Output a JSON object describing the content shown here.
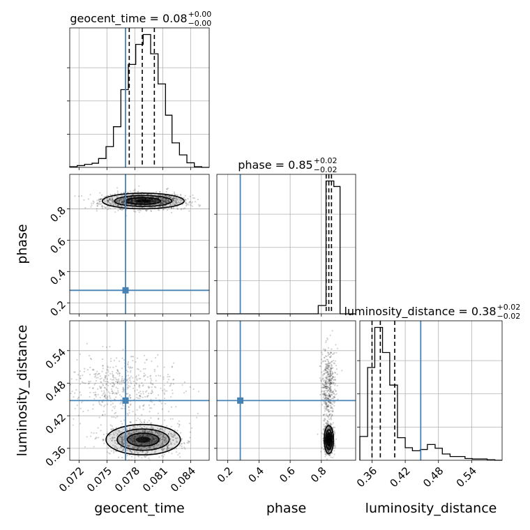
{
  "chart_data": {
    "type": "corner",
    "parameters": [
      "geocent_time",
      "phase",
      "luminosity_distance"
    ],
    "truth_color": "#4682b4",
    "truths": {
      "geocent_time": 0.077,
      "phase": 0.28,
      "luminosity_distance": 0.448
    },
    "titles": [
      {
        "param": "geocent_time",
        "text": "geocent_time = 0.08",
        "sup": "+0.00",
        "sub": "−0.00"
      },
      {
        "param": "phase",
        "text": "phase = 0.85",
        "sup": "+0.02",
        "sub": "−0.02"
      },
      {
        "param": "luminosity_distance",
        "text": "luminosity_distance = 0.38",
        "sup": "+0.02",
        "sub": "−0.02"
      }
    ],
    "axes": {
      "geocent_time": {
        "range": [
          0.071,
          0.086
        ],
        "ticks": [
          "0.072",
          "0.075",
          "0.078",
          "0.081",
          "0.084"
        ],
        "tick_values": [
          0.072,
          0.075,
          0.078,
          0.081,
          0.084
        ]
      },
      "phase": {
        "range": [
          0.13,
          1.02
        ],
        "ticks": [
          "0.2",
          "0.4",
          "0.6",
          "0.8"
        ],
        "tick_values": [
          0.2,
          0.4,
          0.6,
          0.8
        ]
      },
      "luminosity_distance": {
        "range": [
          0.338,
          0.595
        ],
        "ticks": [
          "0.36",
          "0.42",
          "0.48",
          "0.54"
        ],
        "tick_values": [
          0.36,
          0.42,
          0.48,
          0.54
        ]
      }
    },
    "histograms": {
      "geocent_time": {
        "bin_edges": [
          0.071,
          0.0718,
          0.0726,
          0.0734,
          0.0741,
          0.0749,
          0.0757,
          0.0765,
          0.0773,
          0.0781,
          0.0789,
          0.0797,
          0.0805,
          0.0813,
          0.082,
          0.0828,
          0.0836,
          0.0844,
          0.0852,
          0.086
        ],
        "counts": [
          0.5,
          1.3,
          2.2,
          3.0,
          6.4,
          15.0,
          29.4,
          56.2,
          74.4,
          88.9,
          96.0,
          82.1,
          60.3,
          37.7,
          17.7,
          9.0,
          3.3,
          0.5,
          0.0
        ],
        "quantiles": [
          0.0774,
          0.0788,
          0.0801
        ]
      },
      "phase": {
        "bin_edges": [
          0.13,
          0.18,
          0.22,
          0.27,
          0.32,
          0.36,
          0.41,
          0.46,
          0.5,
          0.55,
          0.6,
          0.64,
          0.69,
          0.74,
          0.78,
          0.83,
          0.88,
          0.92,
          0.97,
          1.02
        ],
        "counts": [
          0,
          0,
          0,
          0,
          0,
          0,
          0,
          0,
          0,
          0,
          0,
          0,
          0,
          0,
          3,
          48,
          46,
          0,
          0
        ],
        "quantiles": [
          0.831,
          0.848,
          0.865
        ]
      },
      "luminosity_distance": {
        "bin_edges": [
          0.338,
          0.352,
          0.365,
          0.379,
          0.392,
          0.406,
          0.42,
          0.433,
          0.447,
          0.46,
          0.474,
          0.487,
          0.501,
          0.514,
          0.528,
          0.541,
          0.555,
          0.568,
          0.582,
          0.595
        ],
        "counts": [
          9.5,
          37,
          53,
          43,
          30,
          9,
          5,
          3.8,
          4.3,
          6.3,
          4.8,
          2.5,
          1.5,
          1.5,
          0.7,
          0.5,
          0.5,
          0.2,
          0
        ],
        "quantiles": [
          0.36,
          0.375,
          0.401
        ]
      }
    },
    "scatter_2d": [
      {
        "x": "geocent_time",
        "y": "phase",
        "centers": [
          {
            "x": 0.0789,
            "y": 0.85,
            "sx": 0.0022,
            "sy": 0.025,
            "weight": 1.0
          }
        ]
      },
      {
        "x": "geocent_time",
        "y": "luminosity_distance",
        "centers": [
          {
            "x": 0.0789,
            "y": 0.376,
            "sx": 0.002,
            "sy": 0.014,
            "weight": 0.62
          },
          {
            "x": 0.0765,
            "y": 0.475,
            "sx": 0.003,
            "sy": 0.028,
            "weight": 0.38
          }
        ]
      },
      {
        "x": "phase",
        "y": "luminosity_distance",
        "centers": [
          {
            "x": 0.848,
            "y": 0.376,
            "sx": 0.015,
            "sy": 0.013,
            "weight": 0.62
          },
          {
            "x": 0.848,
            "y": 0.475,
            "sx": 0.022,
            "sy": 0.035,
            "weight": 0.38
          }
        ]
      }
    ]
  }
}
